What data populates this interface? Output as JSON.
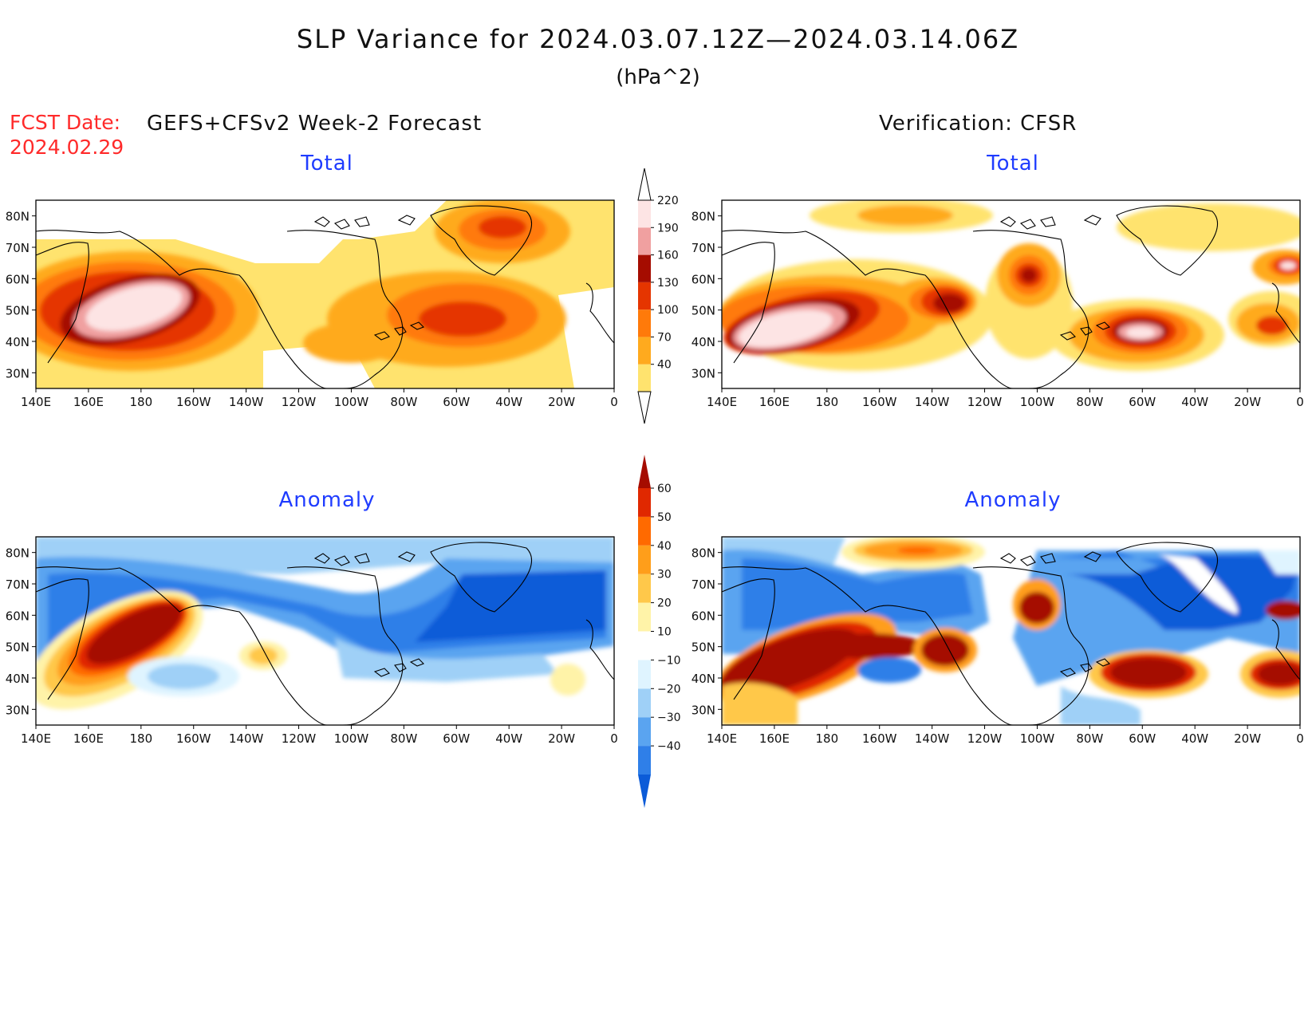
{
  "header": {
    "title": "SLP Variance for 2024.03.07.12Z—2024.03.14.06Z",
    "units": "(hPa^2)",
    "fcst_date_label": "FCST Date:",
    "fcst_date_value": "2024.02.29",
    "forecast_label": "GEFS+CFSv2 Week-2 Forecast",
    "verification_label": "Verification: CFSR"
  },
  "panels": [
    {
      "id": "forecast-total",
      "title": "Total"
    },
    {
      "id": "verification-total",
      "title": "Total"
    },
    {
      "id": "forecast-anomaly",
      "title": "Anomaly"
    },
    {
      "id": "verification-anomaly",
      "title": "Anomaly"
    }
  ],
  "axes": {
    "lat_labels": [
      "80N",
      "70N",
      "60N",
      "50N",
      "40N",
      "30N"
    ],
    "lat_values": [
      80,
      70,
      60,
      50,
      40,
      30
    ],
    "lon_labels": [
      "140E",
      "160E",
      "180",
      "160W",
      "140W",
      "120W",
      "100W",
      "80W",
      "60W",
      "40W",
      "20W",
      "0"
    ],
    "lat_range": [
      25,
      85
    ],
    "lon_range_desc": "140E to 0"
  },
  "colorbars": {
    "total": {
      "labels": [
        "220",
        "190",
        "160",
        "130",
        "100",
        "70",
        "40"
      ],
      "levels": [
        40,
        70,
        100,
        130,
        160,
        190,
        220
      ],
      "colors": [
        "#ffe36e",
        "#ffaa1e",
        "#ff7a0a",
        "#e53500",
        "#a50c00",
        "#f0a0a0",
        "#fde4e4"
      ]
    },
    "anomaly": {
      "labels": [
        "60",
        "50",
        "40",
        "30",
        "20",
        "10",
        "−10",
        "−20",
        "−30",
        "−40"
      ],
      "levels": [
        -40,
        -30,
        -20,
        -10,
        10,
        20,
        30,
        40,
        50,
        60
      ],
      "colors": [
        "#0b5bd8",
        "#2f7fe8",
        "#5aa4f0",
        "#9fd0f7",
        "#dff4ff",
        "#ffffff",
        "#fff3a8",
        "#ffc84a",
        "#ff9e1a",
        "#ff6a00",
        "#e02800",
        "#a50c00"
      ]
    }
  },
  "colors": {
    "panel_title": "#1f3cff",
    "fcst_date": "#ff2a2a"
  }
}
